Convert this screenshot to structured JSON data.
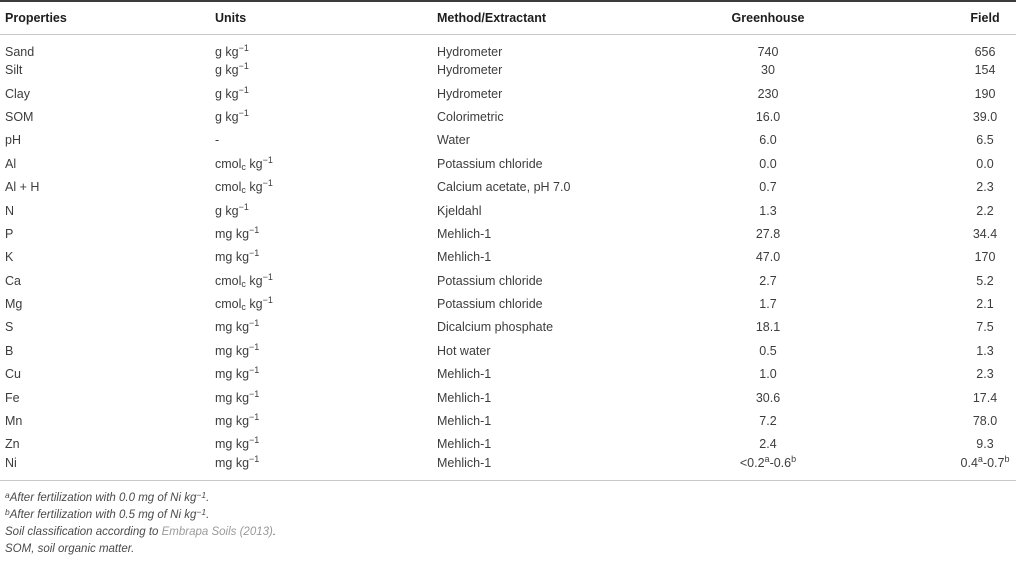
{
  "table": {
    "columns": [
      "Properties",
      "Units",
      "Method/Extractant",
      "Greenhouse",
      "Field"
    ],
    "rows": [
      {
        "property": "Sand",
        "units": "g kg^{−1}",
        "method": "Hydrometer",
        "greenhouse": "740",
        "field": "656"
      },
      {
        "property": "Silt",
        "units": "g kg^{−1}",
        "method": "Hydrometer",
        "greenhouse": "30",
        "field": "154"
      },
      {
        "property": "Clay",
        "units": "g kg^{−1}",
        "method": "Hydrometer",
        "greenhouse": "230",
        "field": "190"
      },
      {
        "property": "SOM",
        "units": "g kg^{−1}",
        "method": "Colorimetric",
        "greenhouse": "16.0",
        "field": "39.0"
      },
      {
        "property": "pH",
        "units": "-",
        "method": "Water",
        "greenhouse": "6.0",
        "field": "6.5"
      },
      {
        "property": "Al",
        "units": "cmol~{c} kg^{−1}",
        "method": "Potassium chloride",
        "greenhouse": "0.0",
        "field": "0.0"
      },
      {
        "property": "Al + H",
        "units": "cmol~{c} kg^{−1}",
        "method": "Calcium acetate, pH 7.0",
        "greenhouse": "0.7",
        "field": "2.3"
      },
      {
        "property": "N",
        "units": "g kg^{−1}",
        "method": "Kjeldahl",
        "greenhouse": "1.3",
        "field": "2.2"
      },
      {
        "property": "P",
        "units": "mg kg^{−1}",
        "method": "Mehlich-1",
        "greenhouse": "27.8",
        "field": "34.4"
      },
      {
        "property": "K",
        "units": "mg kg^{−1}",
        "method": "Mehlich-1",
        "greenhouse": "47.0",
        "field": "170"
      },
      {
        "property": "Ca",
        "units": "cmol~{c} kg^{−1}",
        "method": "Potassium chloride",
        "greenhouse": "2.7",
        "field": "5.2"
      },
      {
        "property": "Mg",
        "units": "cmol~{c} kg^{−1}",
        "method": "Potassium chloride",
        "greenhouse": "1.7",
        "field": "2.1"
      },
      {
        "property": "S",
        "units": "mg kg^{−1}",
        "method": "Dicalcium phosphate",
        "greenhouse": "18.1",
        "field": "7.5"
      },
      {
        "property": "B",
        "units": "mg kg^{−1}",
        "method": "Hot water",
        "greenhouse": "0.5",
        "field": "1.3"
      },
      {
        "property": "Cu",
        "units": "mg kg^{−1}",
        "method": "Mehlich-1",
        "greenhouse": "1.0",
        "field": "2.3"
      },
      {
        "property": "Fe",
        "units": "mg kg^{−1}",
        "method": "Mehlich-1",
        "greenhouse": "30.6",
        "field": "17.4"
      },
      {
        "property": "Mn",
        "units": "mg kg^{−1}",
        "method": "Mehlich-1",
        "greenhouse": "7.2",
        "field": "78.0"
      },
      {
        "property": "Zn",
        "units": "mg kg^{−1}",
        "method": "Mehlich-1",
        "greenhouse": "2.4",
        "field": "9.3"
      },
      {
        "property": "Ni",
        "units": "mg kg^{−1}",
        "method": "Mehlich-1",
        "greenhouse": "<0.2^{a}-0.6^{b}",
        "field": "0.4^{a}-0.7^{b}"
      }
    ]
  },
  "footnotes": [
    "^{a}After fertilization with 0.0 mg of Ni kg^{−1}.",
    "^{b}After fertilization with 0.5 mg of Ni kg^{−1}.",
    "Soil classification according to @{Embrapa Soils (2013)}.",
    "SOM, soil organic matter."
  ],
  "colors": {
    "header_text": "#1d1d1d",
    "body_text": "#3d3d3d",
    "footnote_text": "#4a4a4a",
    "citation": "#9a9a9a",
    "rule_dark": "#3c3c3c",
    "rule_light": "#c8c8c8"
  }
}
